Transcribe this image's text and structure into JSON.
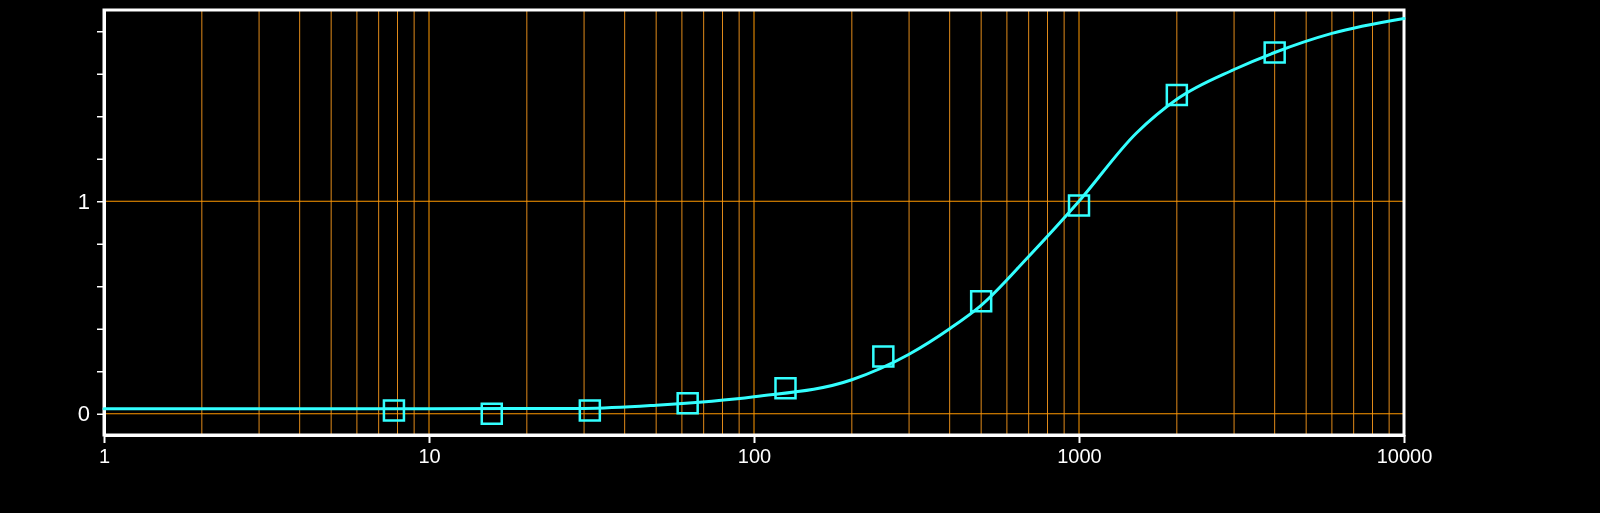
{
  "chart_data": {
    "type": "scatter",
    "log": "x",
    "grid": true,
    "xlim": [
      1,
      10000
    ],
    "xticks": [
      1,
      {
        "value": 2,
        "label": null
      },
      {
        "value": 3,
        "label": null
      },
      {
        "value": 4,
        "label": null
      },
      {
        "value": 5,
        "label": null
      },
      {
        "value": 6,
        "label": null
      },
      {
        "value": 7,
        "label": null
      },
      {
        "value": 8,
        "label": null
      },
      {
        "value": 9,
        "label": null
      },
      10,
      {
        "value": 20,
        "label": null
      },
      {
        "value": 30,
        "label": null
      },
      {
        "value": 40,
        "label": null
      },
      {
        "value": 50,
        "label": null
      },
      {
        "value": 60,
        "label": null
      },
      {
        "value": 70,
        "label": null
      },
      {
        "value": 80,
        "label": null
      },
      {
        "value": 90,
        "label": null
      },
      100,
      {
        "value": 200,
        "label": null
      },
      {
        "value": 300,
        "label": null
      },
      {
        "value": 400,
        "label": null
      },
      {
        "value": 500,
        "label": null
      },
      {
        "value": 600,
        "label": null
      },
      {
        "value": 700,
        "label": null
      },
      {
        "value": 800,
        "label": null
      },
      {
        "value": 900,
        "label": null
      },
      1000,
      {
        "value": 2000,
        "label": null
      },
      {
        "value": 3000,
        "label": null
      },
      {
        "value": 4000,
        "label": null
      },
      {
        "value": 5000,
        "label": null
      },
      {
        "value": 6000,
        "label": null
      },
      {
        "value": 7000,
        "label": null
      },
      {
        "value": 8000,
        "label": null
      },
      {
        "value": 9000,
        "label": null
      },
      10000
    ],
    "ylim": [
      -0.1,
      1.9
    ],
    "yticks": [
      0,
      {
        "value": 0.2,
        "label": null
      },
      {
        "value": 0.4,
        "label": null
      },
      {
        "value": 0.6,
        "label": null
      },
      {
        "value": 0.8,
        "label": null
      },
      1,
      {
        "value": 1.2,
        "label": null
      },
      {
        "value": 1.4,
        "label": null
      },
      {
        "value": 1.6,
        "label": null
      },
      {
        "value": 1.8,
        "label": null
      }
    ],
    "series": [
      {
        "type": "line",
        "marker": "none",
        "color": "#33ffff",
        "x": [
          1,
          10,
          30,
          50,
          100,
          200,
          300,
          400,
          500,
          700,
          1000,
          1500,
          2000,
          3000,
          4000,
          6000,
          10000
        ],
        "values": [
          0.024,
          0.024,
          0.025,
          0.04,
          0.08,
          0.16,
          0.28,
          0.4,
          0.51,
          0.74,
          1.0,
          1.32,
          1.48,
          1.62,
          1.7,
          1.79,
          1.86
        ]
      },
      {
        "marker": "square",
        "color": "#33ffff",
        "x": [
          7.8,
          15.6,
          31.25,
          62.5,
          125,
          250,
          500,
          1000,
          2000,
          4000
        ],
        "values": [
          0.015,
          0.0,
          0.015,
          0.05,
          0.12,
          0.27,
          0.53,
          0.98,
          1.5,
          1.7
        ]
      }
    ]
  }
}
